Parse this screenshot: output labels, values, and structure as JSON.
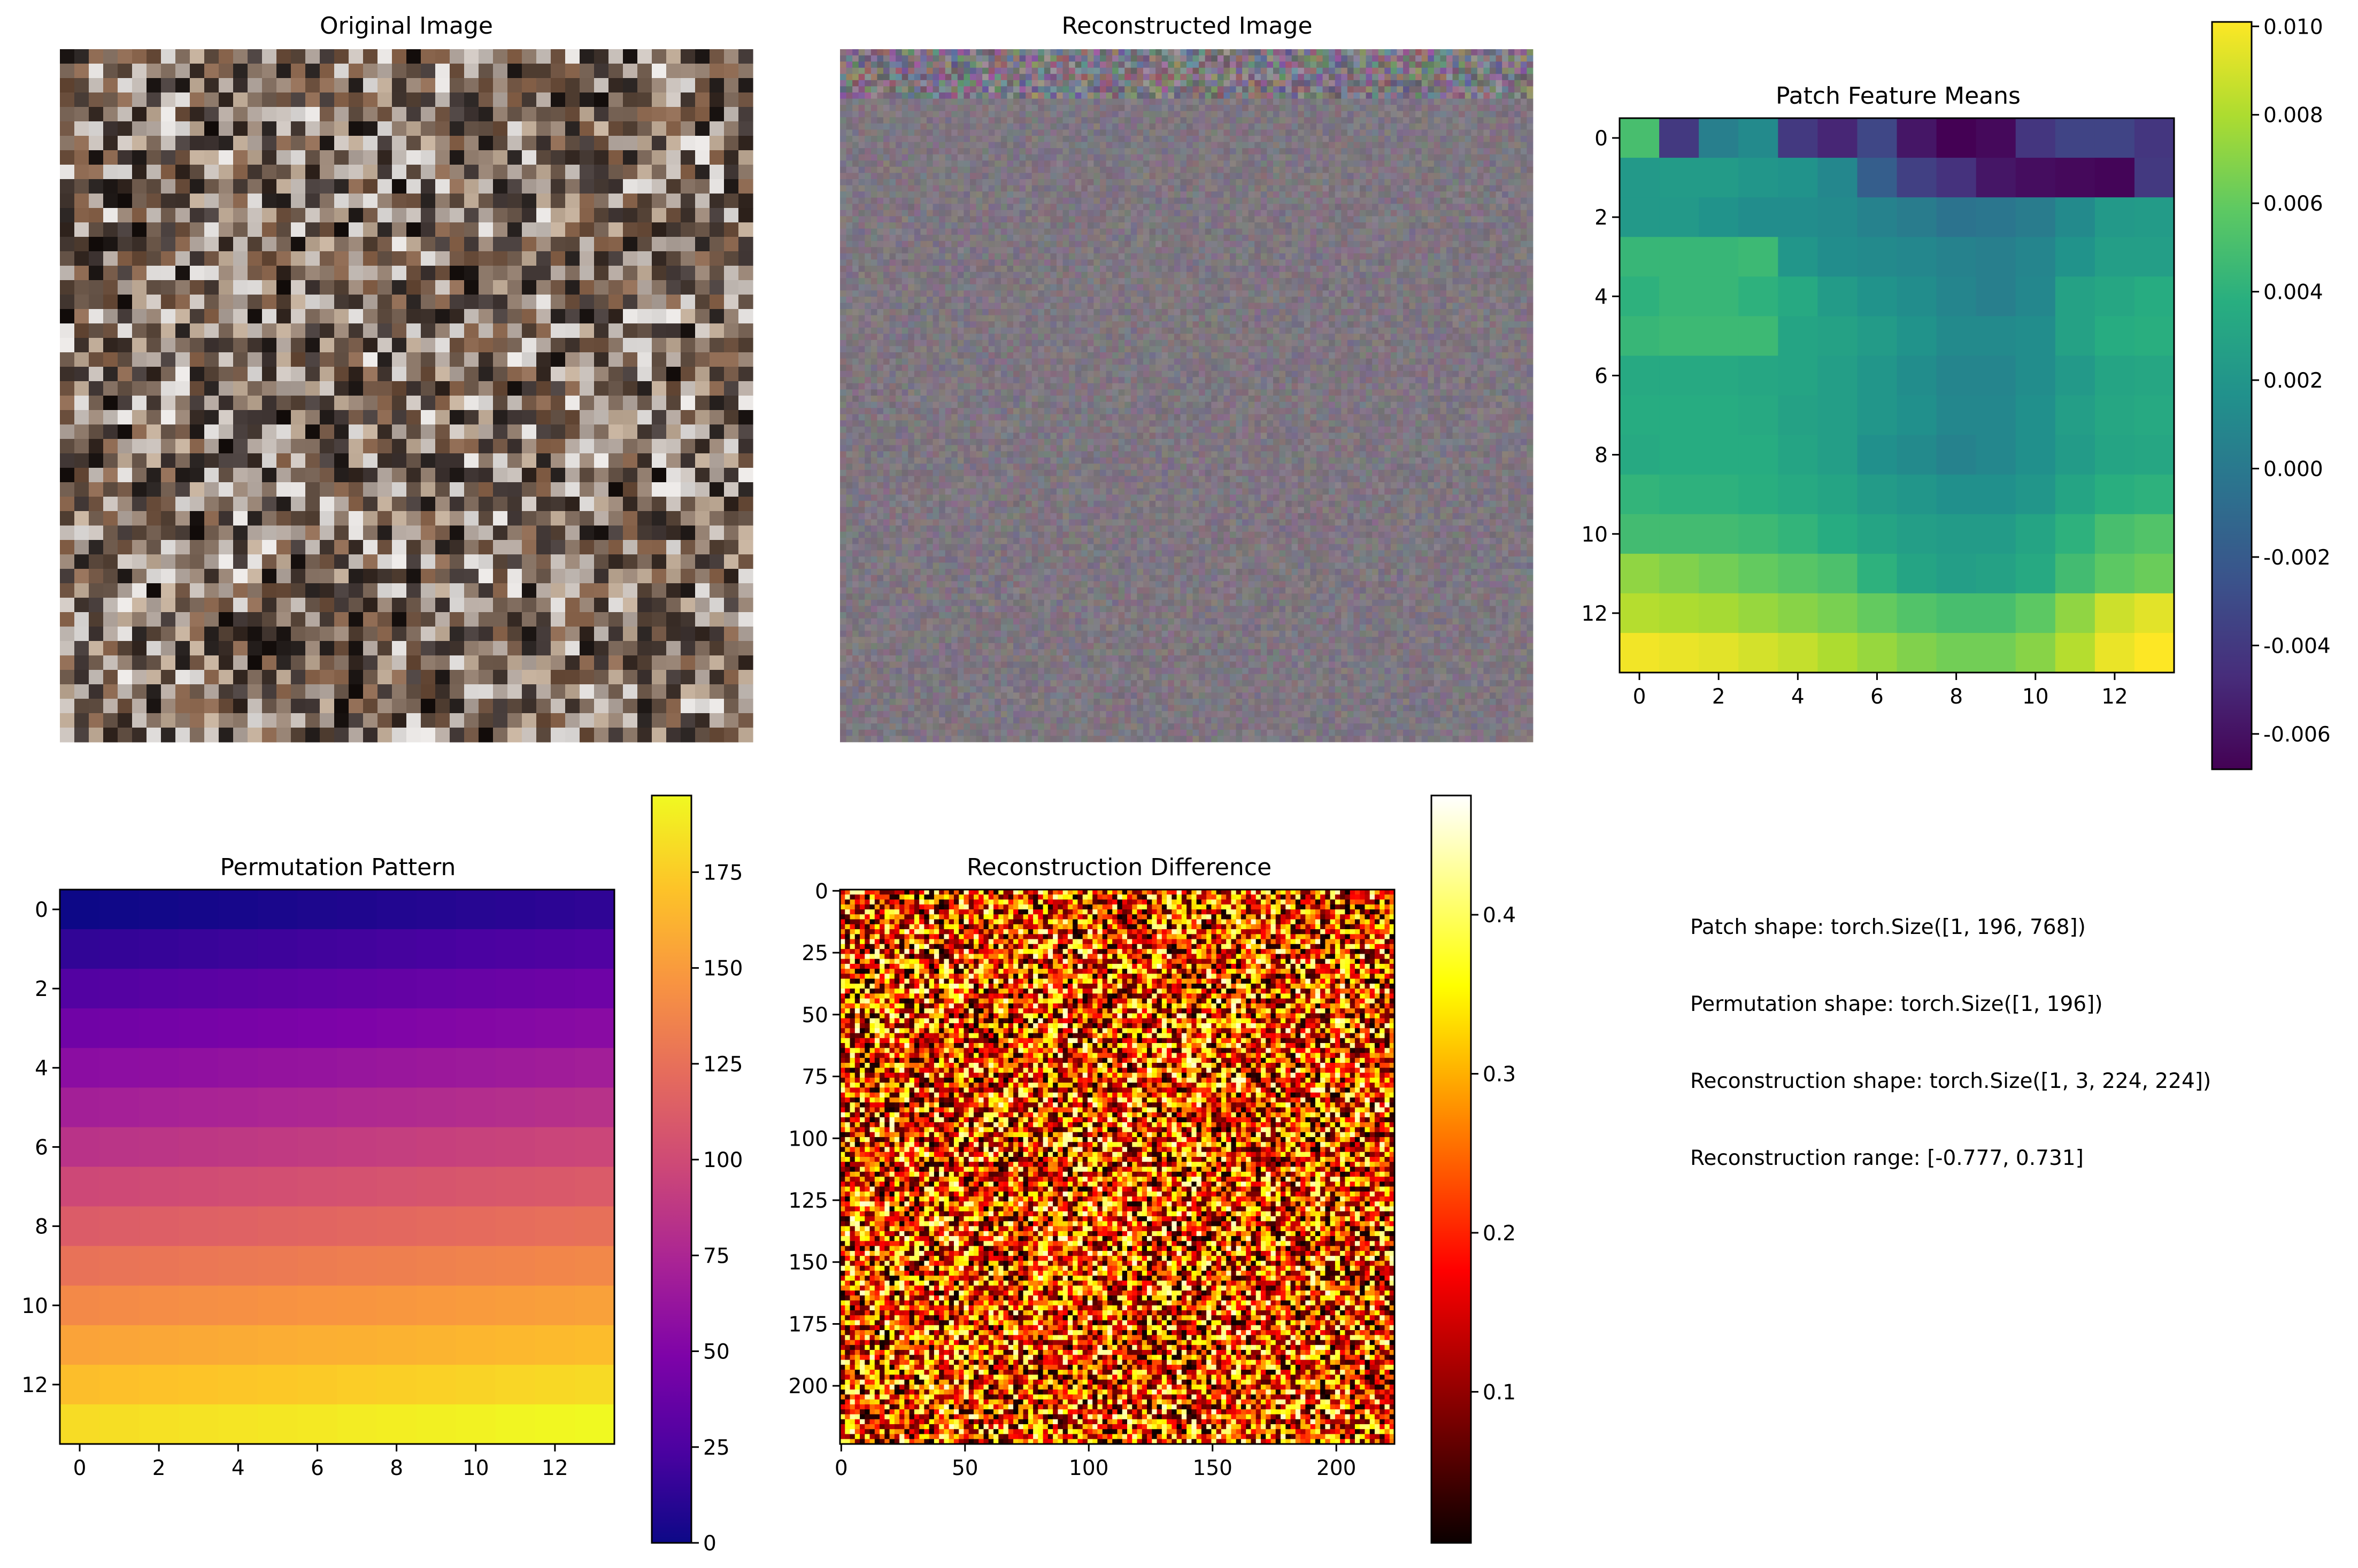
{
  "chart_data": [
    {
      "type": "image",
      "title": "Original Image",
      "axes_visible": false,
      "grid_size": [
        48,
        48
      ],
      "content": "scrambled photo patches, brown / gray / white tones"
    },
    {
      "type": "image",
      "title": "Reconstructed Image",
      "axes_visible": false,
      "grid_size": [
        112,
        112
      ],
      "content": "mostly uniform gray-purple noise with a noisier top strip"
    },
    {
      "type": "heatmap",
      "title": "Patch Feature Means",
      "colormap": "viridis",
      "rows": 14,
      "cols": 14,
      "x_ticks": [
        "0",
        "2",
        "4",
        "6",
        "8",
        "10",
        "12"
      ],
      "y_ticks": [
        "0",
        "2",
        "4",
        "6",
        "8",
        "10",
        "12"
      ],
      "colorbar": {
        "min": -0.0068,
        "max": 0.0101,
        "ticks": [
          "-0.006",
          "-0.004",
          "-0.002",
          "0.000",
          "0.002",
          "0.004",
          "0.006",
          "0.008",
          "0.010"
        ],
        "tick_values": [
          -0.006,
          -0.004,
          -0.002,
          0.0,
          0.002,
          0.004,
          0.006,
          0.008,
          0.01
        ]
      },
      "values": [
        [
          0.005,
          -0.004,
          0.0004,
          0.0012,
          -0.004,
          -0.005,
          -0.0032,
          -0.0058,
          -0.0068,
          -0.0064,
          -0.0042,
          -0.0034,
          -0.0034,
          -0.0042
        ],
        [
          0.0022,
          0.0024,
          0.0024,
          0.002,
          0.0018,
          0.001,
          -0.0018,
          -0.0036,
          -0.0044,
          -0.0058,
          -0.0062,
          -0.0064,
          -0.0066,
          -0.004
        ],
        [
          0.0022,
          0.0022,
          0.0018,
          0.0014,
          0.0014,
          0.0012,
          0.0006,
          0.0002,
          -0.0004,
          -0.0002,
          0.0002,
          0.0012,
          0.0022,
          0.0024
        ],
        [
          0.0044,
          0.0044,
          0.0044,
          0.0046,
          0.002,
          0.0014,
          0.0012,
          0.001,
          0.0006,
          0.0004,
          0.0008,
          0.0018,
          0.0026,
          0.0026
        ],
        [
          0.004,
          0.0044,
          0.0044,
          0.004,
          0.0034,
          0.0024,
          0.0018,
          0.0014,
          0.0008,
          0.0004,
          0.001,
          0.0028,
          0.0032,
          0.0036
        ],
        [
          0.0044,
          0.0046,
          0.0046,
          0.0046,
          0.003,
          0.0028,
          0.0024,
          0.0018,
          0.0012,
          0.0012,
          0.0014,
          0.0028,
          0.0036,
          0.0038
        ],
        [
          0.0034,
          0.0034,
          0.0034,
          0.0032,
          0.003,
          0.0026,
          0.002,
          0.0014,
          0.0008,
          0.0008,
          0.0014,
          0.0022,
          0.003,
          0.0032
        ],
        [
          0.0036,
          0.0036,
          0.0036,
          0.0034,
          0.0028,
          0.0026,
          0.002,
          0.0016,
          0.001,
          0.001,
          0.0016,
          0.0026,
          0.0032,
          0.0034
        ],
        [
          0.0034,
          0.0036,
          0.0036,
          0.0036,
          0.003,
          0.0026,
          0.0016,
          0.0012,
          0.0006,
          0.001,
          0.0016,
          0.0024,
          0.003,
          0.0032
        ],
        [
          0.0042,
          0.004,
          0.004,
          0.0038,
          0.0034,
          0.003,
          0.0024,
          0.002,
          0.0016,
          0.0016,
          0.002,
          0.003,
          0.0038,
          0.004
        ],
        [
          0.0048,
          0.0048,
          0.0048,
          0.0046,
          0.0042,
          0.0036,
          0.003,
          0.0026,
          0.0024,
          0.0024,
          0.003,
          0.004,
          0.005,
          0.0054
        ],
        [
          0.0072,
          0.0068,
          0.0064,
          0.006,
          0.0056,
          0.0052,
          0.004,
          0.003,
          0.0026,
          0.0028,
          0.0034,
          0.0048,
          0.0058,
          0.0062
        ],
        [
          0.0082,
          0.008,
          0.0078,
          0.0074,
          0.007,
          0.0066,
          0.006,
          0.0054,
          0.005,
          0.005,
          0.0058,
          0.0072,
          0.0088,
          0.0094
        ],
        [
          0.0098,
          0.0096,
          0.0094,
          0.009,
          0.0086,
          0.008,
          0.0074,
          0.0068,
          0.0064,
          0.0064,
          0.007,
          0.0082,
          0.0096,
          0.0101
        ]
      ]
    },
    {
      "type": "heatmap",
      "title": "Permutation Pattern",
      "colormap": "plasma",
      "rows": 14,
      "cols": 14,
      "description": "value = row*14 + col",
      "x_ticks": [
        "0",
        "2",
        "4",
        "6",
        "8",
        "10",
        "12"
      ],
      "y_ticks": [
        "0",
        "2",
        "4",
        "6",
        "8",
        "10",
        "12"
      ],
      "colorbar": {
        "min": 0,
        "max": 195,
        "ticks": [
          "0",
          "25",
          "50",
          "75",
          "100",
          "125",
          "150",
          "175"
        ],
        "tick_values": [
          0,
          25,
          50,
          75,
          100,
          125,
          150,
          175
        ]
      }
    },
    {
      "type": "heatmap",
      "title": "Reconstruction Difference",
      "colormap": "hot",
      "rows": 112,
      "cols": 112,
      "content": "random noise",
      "x_ticks": [
        "0",
        "50",
        "100",
        "150",
        "200"
      ],
      "x_tick_values": [
        0,
        50,
        100,
        150,
        200
      ],
      "y_ticks": [
        "0",
        "25",
        "50",
        "75",
        "100",
        "125",
        "150",
        "175",
        "200"
      ],
      "y_tick_values": [
        0,
        25,
        50,
        75,
        100,
        125,
        150,
        175,
        200
      ],
      "extent": 224,
      "colorbar": {
        "min": 0.005,
        "max": 0.475,
        "ticks": [
          "0.1",
          "0.2",
          "0.3",
          "0.4"
        ],
        "tick_values": [
          0.1,
          0.2,
          0.3,
          0.4
        ]
      }
    }
  ],
  "info_text": {
    "line1": "Patch shape: torch.Size([1, 196, 768])",
    "line2": "Permutation shape: torch.Size([1, 196])",
    "line3": "Reconstruction shape: torch.Size([1, 3, 224, 224])",
    "line4": "Reconstruction range: [-0.777, 0.731]"
  }
}
